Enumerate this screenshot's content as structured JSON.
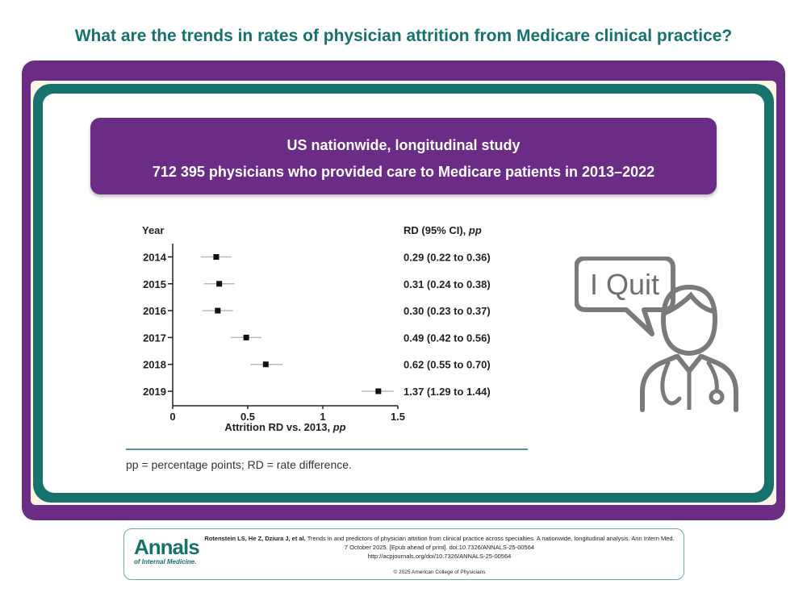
{
  "title": "What are the trends in rates of physician attrition from Medicare clinical practice?",
  "study": {
    "line1": "US nationwide, longitudinal study",
    "line2": "712 395 physicians who provided care to Medicare patients in 2013–2022"
  },
  "chart_data": {
    "type": "forest",
    "title": "",
    "row_header": "Year",
    "ci_header": "RD (95% CI), pp",
    "xlabel": "Attrition RD vs. 2013, pp",
    "xlim": [
      0,
      1.5
    ],
    "xticks": [
      0,
      0.5,
      1,
      1.5
    ],
    "xtick_labels": [
      "0",
      "0.5",
      "1",
      "1.5"
    ],
    "rows": [
      {
        "year": "2014",
        "rd": 0.29,
        "lo": 0.22,
        "hi": 0.36,
        "label": "0.29 (0.22 to 0.36)"
      },
      {
        "year": "2015",
        "rd": 0.31,
        "lo": 0.24,
        "hi": 0.38,
        "label": "0.31 (0.24 to 0.38)"
      },
      {
        "year": "2016",
        "rd": 0.3,
        "lo": 0.23,
        "hi": 0.37,
        "label": "0.30 (0.23 to 0.37)"
      },
      {
        "year": "2017",
        "rd": 0.49,
        "lo": 0.42,
        "hi": 0.56,
        "label": "0.49 (0.42 to 0.56)"
      },
      {
        "year": "2018",
        "rd": 0.62,
        "lo": 0.55,
        "hi": 0.7,
        "label": "0.62 (0.55 to 0.70)"
      },
      {
        "year": "2019",
        "rd": 1.37,
        "lo": 1.29,
        "hi": 1.44,
        "label": "1.37 (1.29 to 1.44)"
      }
    ],
    "colors": {
      "marker": "#111111",
      "ci": "#bbbbbb",
      "axis": "#222222"
    }
  },
  "footnote": "pp = percentage points; RD = rate difference.",
  "illustration": {
    "speech": "I Quit",
    "icon": "doctor-icon"
  },
  "citation": {
    "logo_main": "Annals",
    "logo_sub": "of Internal Medicine.",
    "authors": "Rotenstein LS, He Z, Dziura J, et al.",
    "text": "Trends in and predictors of physician attrition from clinical practice across specialties. A nationwide, longitudinal analysis. Ann Intern Med. 7 October 2025. [Epub ahead of print]. doi:10.7326/ANNALS-25-00564",
    "url": "http://acpjournals.org/doi/10.7326/ANNALS-25-00564",
    "copyright": "© 2025 American College of Physicians"
  },
  "colors": {
    "teal": "#17726e",
    "purple": "#6b2c85",
    "cream": "#fbf4e3"
  }
}
